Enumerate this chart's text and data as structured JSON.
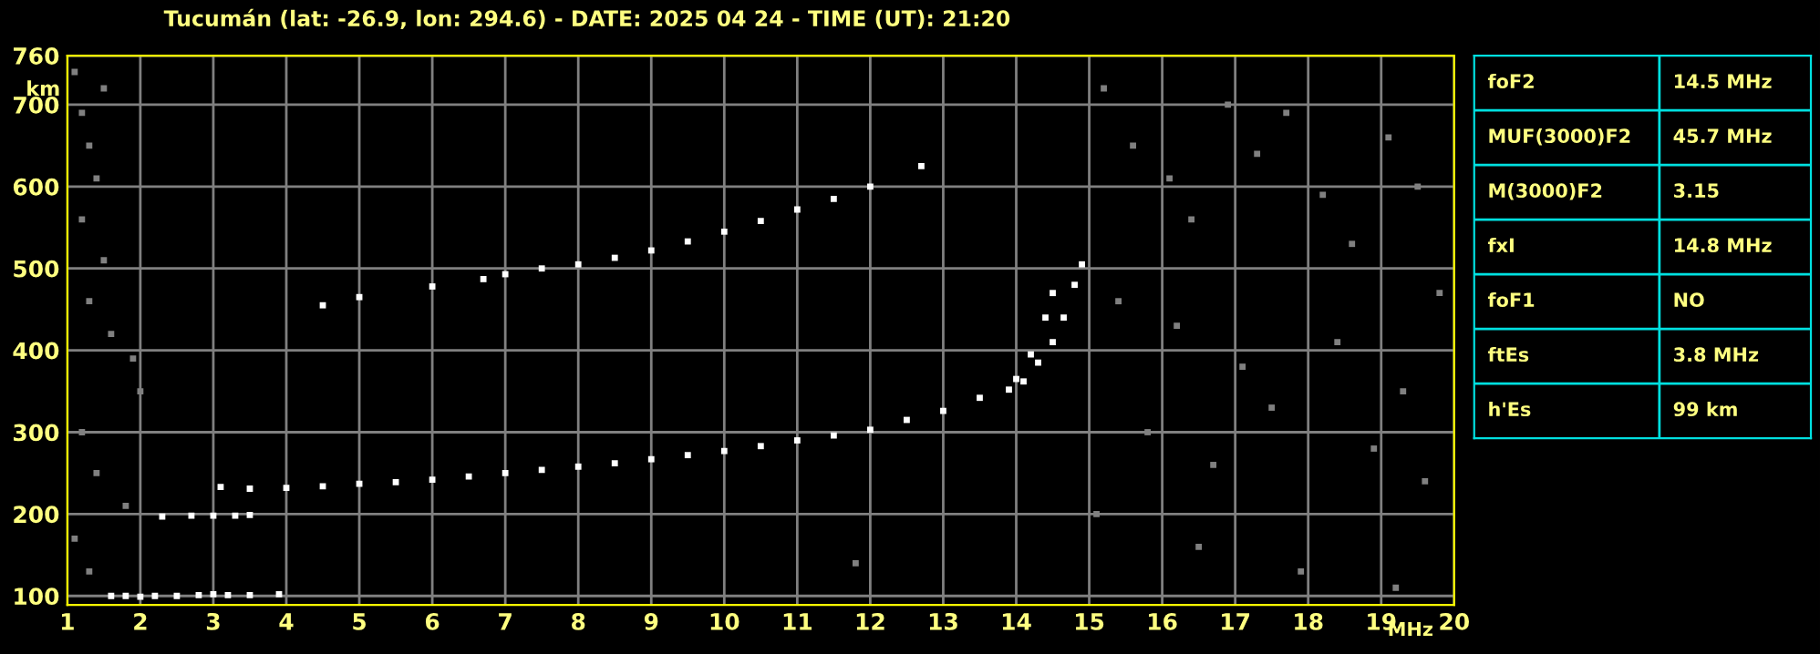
{
  "chart_data": [
    {
      "type": "scatter",
      "title": "Tucumán (lat: -26.9, lon: 294.6) - DATE: 2025 04 24 - TIME (UT): 21:20",
      "xlabel": "MHz",
      "ylabel": "km",
      "marker": "square",
      "grid": true,
      "xlim": [
        1,
        20
      ],
      "xticks": [
        1,
        2,
        3,
        4,
        5,
        6,
        7,
        8,
        9,
        10,
        11,
        12,
        13,
        14,
        15,
        16,
        17,
        18,
        19,
        20
      ],
      "ylim": [
        89,
        760
      ],
      "yticks": [
        100,
        200,
        300,
        400,
        500,
        600,
        700,
        760
      ],
      "series": [
        {
          "color": "#ffffff",
          "x": [
            1.6,
            1.8,
            2.0,
            2.2,
            2.5,
            2.8,
            3.0,
            3.2,
            3.5,
            3.9
          ],
          "values": [
            100,
            100,
            99,
            100,
            100,
            101,
            102,
            101,
            101,
            102
          ]
        },
        {
          "color": "#ffffff",
          "x": [
            2.3,
            2.7,
            3.0,
            3.3,
            3.5
          ],
          "values": [
            197,
            198,
            198,
            198,
            199
          ]
        },
        {
          "color": "#ffffff",
          "x": [
            3.1,
            3.5,
            4.0,
            4.5,
            5.0,
            5.5,
            6.0,
            6.5,
            7.0,
            7.5,
            8.0,
            8.5,
            9.0,
            9.5,
            10.0,
            10.5,
            11.0,
            11.5,
            12.0,
            12.5,
            13.0,
            13.5,
            14.0,
            14.2,
            14.4,
            14.5
          ],
          "values": [
            233,
            231,
            232,
            234,
            237,
            239,
            242,
            246,
            250,
            254,
            258,
            262,
            267,
            272,
            277,
            283,
            290,
            296,
            303,
            315,
            326,
            342,
            365,
            395,
            440,
            470
          ]
        },
        {
          "color": "#ffffff",
          "x": [
            13.9,
            14.1,
            14.3,
            14.5,
            14.65,
            14.8,
            14.9
          ],
          "values": [
            352,
            362,
            385,
            410,
            440,
            480,
            505
          ]
        },
        {
          "color": "#ffffff",
          "x": [
            4.5,
            5.0,
            6.0,
            6.7,
            7.0,
            7.5,
            8.0,
            8.5,
            9.0,
            9.5,
            10.0,
            10.5,
            11.0,
            11.5,
            12.0,
            12.7
          ],
          "values": [
            455,
            465,
            478,
            487,
            493,
            500,
            505,
            513,
            522,
            533,
            545,
            558,
            572,
            585,
            600,
            625
          ]
        },
        {
          "color": "#808080",
          "x": [
            1.1,
            1.2,
            1.3,
            1.4,
            1.2,
            1.5,
            1.3,
            1.6,
            1.9,
            2.0,
            1.2,
            1.4,
            1.8,
            1.1,
            1.3,
            1.5,
            11.8,
            15.2,
            15.6,
            16.1,
            16.4,
            16.9,
            17.3,
            17.7,
            18.2,
            18.6,
            19.1,
            19.5,
            15.4,
            16.2,
            17.1,
            18.4,
            19.3,
            19.8,
            15.8,
            16.7,
            17.5,
            18.9,
            19.6,
            15.1,
            16.5,
            17.9,
            19.2
          ],
          "values": [
            740,
            690,
            650,
            610,
            560,
            510,
            460,
            420,
            390,
            350,
            300,
            250,
            210,
            170,
            130,
            720,
            140,
            720,
            650,
            610,
            560,
            700,
            640,
            690,
            590,
            530,
            660,
            600,
            460,
            430,
            380,
            410,
            350,
            470,
            300,
            260,
            330,
            280,
            240,
            200,
            160,
            130,
            110
          ]
        }
      ]
    },
    {
      "type": "other",
      "annotations": [
        "foF2",
        "14.5 MHz",
        "MUF(3000)F2",
        "45.7 MHz",
        "M(3000)F2",
        "3.15",
        "fxI",
        "14.8 MHz",
        "foF1",
        "NO",
        "ftEs",
        "3.8 MHz",
        "h'Es",
        "99 km"
      ]
    }
  ]
}
